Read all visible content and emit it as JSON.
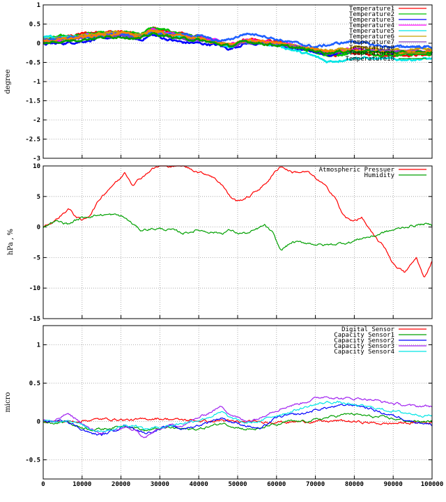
{
  "x_ticks": [
    "0",
    "10000",
    "20000",
    "30000",
    "40000",
    "50000",
    "60000",
    "70000",
    "80000",
    "90000",
    "100000"
  ],
  "chart_data": [
    {
      "type": "line",
      "ylabel": "degree",
      "ylim": [
        -3,
        1
      ],
      "xlim": [
        0,
        100000
      ],
      "grid": true,
      "legend": "top-right",
      "yticks": [
        "1",
        "0.5",
        "0",
        "-0.5",
        "-1",
        "-1.5",
        "-2",
        "-2.5",
        "-3"
      ],
      "ytick_values": [
        1,
        0.5,
        0,
        -0.5,
        -1,
        -1.5,
        -2,
        -2.5,
        -3
      ],
      "x": [
        0,
        5000,
        10000,
        15000,
        20000,
        25000,
        28000,
        32000,
        36000,
        40000,
        45000,
        48000,
        52000,
        56000,
        60000,
        65000,
        70000,
        73000,
        76000,
        80000,
        85000,
        90000,
        95000,
        100000
      ],
      "series": [
        {
          "name": "Temperature1",
          "color": "#ff0000",
          "values": [
            0.05,
            0.15,
            0.25,
            0.3,
            0.3,
            0.22,
            0.38,
            0.3,
            0.25,
            0.2,
            0.05,
            -0.1,
            0.1,
            0.05,
            0.05,
            -0.1,
            -0.2,
            -0.3,
            -0.3,
            -0.25,
            -0.3,
            -0.3,
            -0.3,
            -0.3
          ]
        },
        {
          "name": "Temperature2",
          "color": "#00c000",
          "values": [
            0.1,
            0.18,
            0.22,
            0.28,
            0.3,
            0.25,
            0.4,
            0.32,
            0.25,
            0.15,
            0.0,
            -0.1,
            0.08,
            0.02,
            0.0,
            -0.1,
            -0.22,
            -0.32,
            -0.3,
            -0.22,
            -0.28,
            -0.3,
            -0.28,
            -0.28
          ]
        },
        {
          "name": "Temperature3",
          "color": "#0000ff",
          "values": [
            -0.02,
            0.0,
            0.05,
            0.12,
            0.18,
            0.08,
            0.22,
            0.1,
            0.02,
            0.0,
            -0.05,
            -0.15,
            0.0,
            -0.02,
            -0.05,
            -0.15,
            -0.22,
            -0.3,
            -0.25,
            -0.2,
            -0.2,
            -0.25,
            -0.22,
            -0.22
          ]
        },
        {
          "name": "Temperature4",
          "color": "#ff00ff",
          "values": [
            0.05,
            0.1,
            0.18,
            0.25,
            0.28,
            0.2,
            0.35,
            0.25,
            0.2,
            0.15,
            0.05,
            -0.05,
            0.1,
            0.05,
            0.02,
            -0.05,
            -0.15,
            -0.25,
            -0.2,
            -0.15,
            -0.2,
            -0.22,
            -0.2,
            -0.2
          ]
        },
        {
          "name": "Temperature5",
          "color": "#00e5e5",
          "values": [
            0.15,
            0.15,
            0.2,
            0.2,
            0.22,
            0.2,
            0.3,
            0.22,
            0.15,
            0.1,
            0.0,
            -0.1,
            0.05,
            0.0,
            -0.05,
            -0.2,
            -0.35,
            -0.48,
            -0.45,
            -0.38,
            -0.4,
            -0.42,
            -0.42,
            -0.4
          ]
        },
        {
          "name": "Temperature6",
          "color": "#c8a000",
          "values": [
            0.08,
            0.12,
            0.2,
            0.26,
            0.28,
            0.2,
            0.33,
            0.25,
            0.2,
            0.12,
            0.02,
            -0.08,
            0.05,
            0.02,
            0.0,
            -0.08,
            -0.15,
            -0.2,
            -0.18,
            -0.12,
            -0.15,
            -0.18,
            -0.16,
            -0.16
          ]
        },
        {
          "name": "Temperature7",
          "color": "#7f3fbf",
          "values": [
            0.0,
            0.05,
            0.12,
            0.18,
            0.2,
            0.12,
            0.28,
            0.18,
            0.12,
            0.08,
            0.0,
            -0.1,
            0.02,
            0.0,
            -0.02,
            -0.1,
            -0.18,
            -0.25,
            -0.22,
            -0.18,
            -0.2,
            -0.22,
            -0.2,
            -0.2
          ]
        },
        {
          "name": "Temperature8",
          "color": "#2060ff",
          "values": [
            0.1,
            0.12,
            0.15,
            0.2,
            0.25,
            0.18,
            0.3,
            0.25,
            0.22,
            0.2,
            0.05,
            0.1,
            0.25,
            0.22,
            0.1,
            0.0,
            -0.1,
            -0.05,
            0.0,
            0.05,
            -0.05,
            -0.1,
            -0.08,
            -0.1
          ]
        },
        {
          "name": "Temperature9",
          "color": "#ff8000",
          "values": [
            0.05,
            0.1,
            0.15,
            0.22,
            0.25,
            0.18,
            0.32,
            0.24,
            0.18,
            0.12,
            0.0,
            -0.05,
            0.08,
            0.05,
            0.0,
            -0.1,
            -0.18,
            -0.22,
            -0.2,
            -0.18,
            -0.22,
            -0.25,
            -0.22,
            -0.22
          ]
        },
        {
          "name": "Temperature10",
          "color": "#00a000",
          "values": [
            0.0,
            0.05,
            0.1,
            0.15,
            0.18,
            0.12,
            0.25,
            0.18,
            0.12,
            0.08,
            -0.02,
            -0.08,
            0.05,
            0.0,
            -0.05,
            -0.12,
            -0.2,
            -0.25,
            -0.22,
            -0.2,
            -0.22,
            -0.25,
            -0.25,
            -0.25
          ]
        }
      ]
    },
    {
      "type": "line",
      "ylabel": "hPa , %",
      "ylim": [
        -15,
        10
      ],
      "xlim": [
        0,
        100000
      ],
      "grid": true,
      "legend": "top-right",
      "yticks": [
        "10",
        "5",
        "0",
        "-5",
        "-10",
        "-15"
      ],
      "ytick_values": [
        10,
        5,
        0,
        -5,
        -10,
        -15
      ],
      "x": [
        0,
        3000,
        6500,
        8000,
        10000,
        12000,
        15000,
        18000,
        20000,
        21000,
        23000,
        25000,
        28000,
        30000,
        33000,
        36000,
        40000,
        43000,
        46000,
        48000,
        50000,
        53000,
        57000,
        59000,
        61000,
        64000,
        68000,
        70000,
        72000,
        75000,
        77000,
        79000,
        82000,
        85000,
        88000,
        90000,
        93000,
        96000,
        98000,
        100000
      ],
      "series": [
        {
          "name": "Atmospheric Pressuer",
          "color": "#ff0000",
          "values": [
            0.0,
            1.0,
            3.0,
            2.0,
            1.0,
            2.0,
            5.0,
            7.0,
            8.0,
            9.0,
            7.0,
            8.0,
            9.5,
            10.0,
            10.0,
            10.0,
            9.0,
            8.5,
            7.0,
            5.0,
            4.2,
            5.0,
            7.0,
            8.5,
            10.0,
            9.0,
            9.0,
            8.0,
            7.0,
            5.0,
            2.0,
            1.0,
            1.5,
            -1.5,
            -3.5,
            -6.0,
            -7.5,
            -5.0,
            -8.5,
            -5.5
          ]
        },
        {
          "name": "Humidity",
          "color": "#00a000",
          "values": [
            0.0,
            1.0,
            0.5,
            1.0,
            1.5,
            1.8,
            2.0,
            2.0,
            1.8,
            1.5,
            0.5,
            -0.5,
            -0.3,
            -0.3,
            -0.5,
            -1.0,
            -0.5,
            -0.8,
            -1.0,
            -0.5,
            -1.0,
            -1.0,
            0.3,
            -1.0,
            -3.8,
            -2.5,
            -2.6,
            -2.8,
            -3.0,
            -2.8,
            -2.6,
            -2.5,
            -1.8,
            -1.5,
            -0.8,
            -0.5,
            0.0,
            0.3,
            0.5,
            0.3
          ]
        }
      ]
    },
    {
      "type": "line",
      "ylabel": "micro",
      "ylim": [
        -0.75,
        1.25
      ],
      "xlim": [
        0,
        100000
      ],
      "grid": true,
      "legend": "top-right",
      "yticks": [
        "1",
        "0.5",
        "0",
        "-0.5"
      ],
      "ytick_values": [
        1,
        0.5,
        0,
        -0.5
      ],
      "x": [
        0,
        3000,
        6000,
        8000,
        12000,
        15000,
        18000,
        21000,
        24000,
        26000,
        29000,
        33000,
        36000,
        40000,
        44000,
        46000,
        48000,
        52000,
        56000,
        58000,
        60000,
        63000,
        67000,
        70000,
        73000,
        76000,
        79000,
        82000,
        85000,
        88000,
        92000,
        95000,
        98000,
        100000
      ],
      "series": [
        {
          "name": "Digital Sensor",
          "color": "#ff0000",
          "values": [
            0.0,
            0.0,
            0.0,
            0.0,
            0.02,
            0.03,
            0.03,
            0.02,
            0.02,
            0.03,
            0.04,
            0.03,
            0.02,
            0.01,
            0.0,
            0.02,
            0.0,
            -0.01,
            0.0,
            -0.01,
            0.0,
            -0.01,
            0.0,
            0.0,
            0.0,
            0.01,
            0.0,
            -0.01,
            -0.02,
            -0.03,
            -0.02,
            -0.02,
            -0.01,
            -0.02
          ]
        },
        {
          "name": "Capacity Sensor1",
          "color": "#00a000",
          "values": [
            0.0,
            -0.02,
            0.0,
            -0.05,
            -0.1,
            -0.1,
            -0.08,
            -0.05,
            -0.08,
            -0.12,
            -0.1,
            -0.08,
            -0.1,
            -0.1,
            -0.05,
            -0.02,
            -0.05,
            -0.1,
            -0.1,
            -0.05,
            -0.05,
            0.0,
            0.0,
            0.02,
            0.05,
            0.08,
            0.1,
            0.08,
            0.06,
            0.05,
            0.02,
            0.0,
            0.0,
            0.0
          ]
        },
        {
          "name": "Capacity Sensor2",
          "color": "#0000ff",
          "values": [
            0.0,
            0.0,
            0.02,
            -0.05,
            -0.15,
            -0.18,
            -0.12,
            -0.05,
            -0.1,
            -0.15,
            -0.12,
            -0.05,
            -0.1,
            -0.05,
            0.02,
            0.05,
            0.0,
            -0.05,
            -0.1,
            -0.02,
            0.05,
            0.08,
            0.1,
            0.15,
            0.18,
            0.2,
            0.22,
            0.2,
            0.15,
            0.1,
            0.05,
            0.0,
            -0.02,
            -0.05
          ]
        },
        {
          "name": "Capacity Sensor3",
          "color": "#a020f0",
          "values": [
            0.02,
            0.0,
            0.1,
            0.05,
            -0.1,
            -0.15,
            -0.12,
            -0.08,
            -0.12,
            -0.22,
            -0.12,
            -0.05,
            -0.05,
            0.05,
            0.15,
            0.2,
            0.1,
            0.0,
            0.05,
            0.12,
            0.15,
            0.2,
            0.25,
            0.3,
            0.33,
            0.3,
            0.3,
            0.3,
            0.28,
            0.25,
            0.22,
            0.2,
            0.2,
            0.2
          ]
        },
        {
          "name": "Capacity Sensor4",
          "color": "#00e5e5",
          "values": [
            0.0,
            0.0,
            0.02,
            0.0,
            -0.1,
            -0.12,
            -0.1,
            -0.05,
            -0.05,
            -0.1,
            -0.08,
            -0.05,
            -0.02,
            0.02,
            0.08,
            0.12,
            0.05,
            -0.02,
            0.0,
            0.05,
            0.08,
            0.12,
            0.18,
            0.22,
            0.25,
            0.25,
            0.22,
            0.2,
            0.18,
            0.15,
            0.12,
            0.1,
            0.08,
            0.08
          ]
        }
      ]
    }
  ]
}
